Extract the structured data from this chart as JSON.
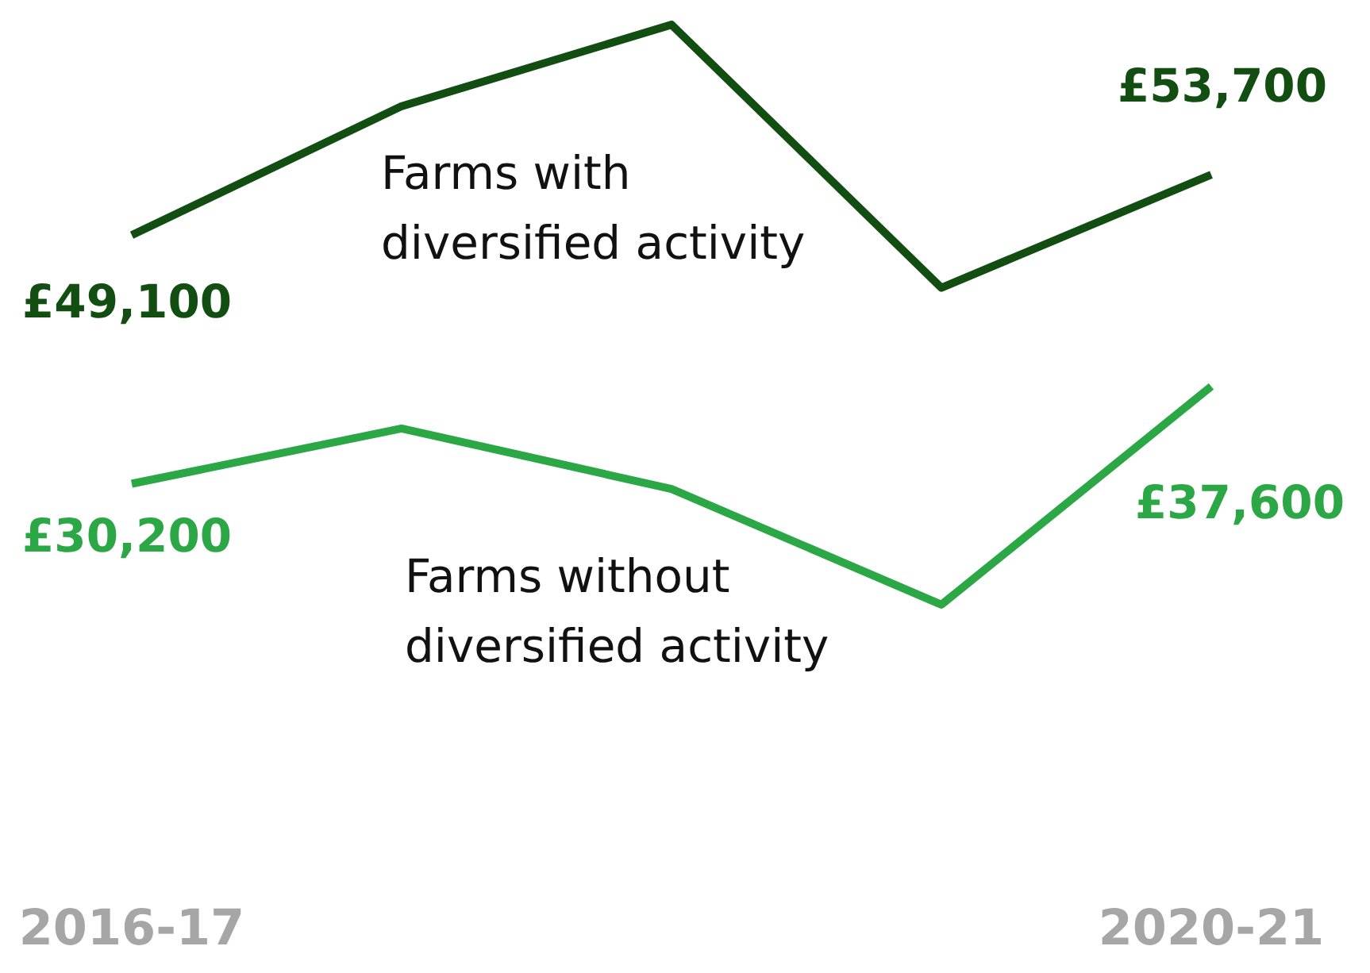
{
  "chart_data": {
    "type": "line",
    "categories": [
      "2016-17",
      null,
      null,
      null,
      "2020-21"
    ],
    "tick_labels": "x",
    "marker": "none",
    "series": [
      {
        "name": "Farms with diversified activity",
        "color": "#124d12",
        "values": [
          49100,
          58900,
          65100,
          45100,
          53700
        ],
        "value_labels": [
          "£49,100",
          null,
          null,
          null,
          "£53,700"
        ]
      },
      {
        "name": "Farms without diversified activity",
        "color": "#2ba845",
        "values": [
          30200,
          34400,
          29800,
          21000,
          37600
        ],
        "value_labels": [
          "£30,200",
          null,
          null,
          null,
          "£37,600"
        ]
      }
    ]
  }
}
